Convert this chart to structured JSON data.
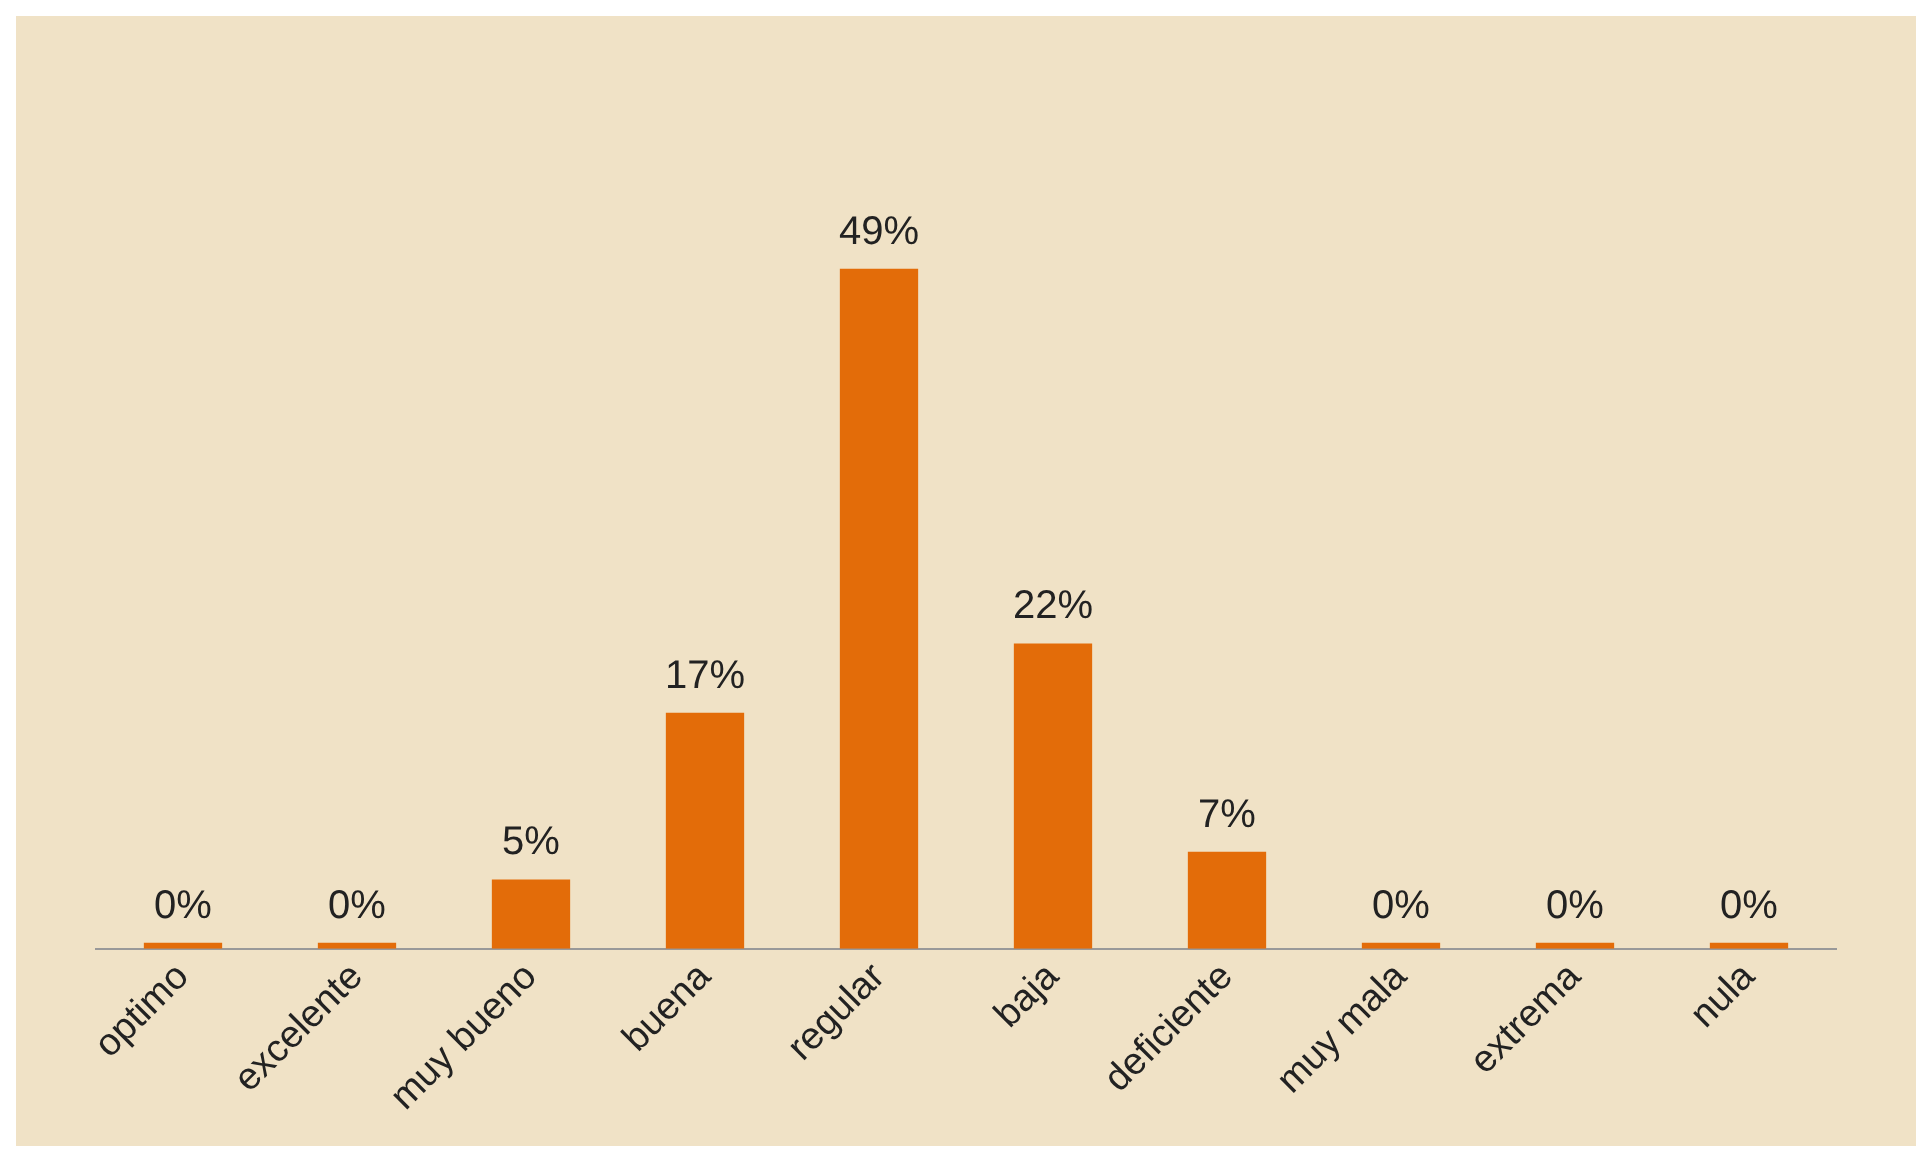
{
  "chart_data": {
    "type": "bar",
    "categories": [
      "optimo",
      "excelente",
      "muy bueno",
      "buena",
      "regular",
      "baja",
      "deficiente",
      "muy mala",
      "extrema",
      "nula"
    ],
    "values": [
      0,
      0,
      5,
      17,
      49,
      22,
      7,
      0,
      0,
      0
    ],
    "value_labels": [
      "0%",
      "0%",
      "5%",
      "17%",
      "49%",
      "22%",
      "7%",
      "0%",
      "0%",
      "0%"
    ],
    "color": "#e36c09",
    "grid": false,
    "legend": false
  }
}
